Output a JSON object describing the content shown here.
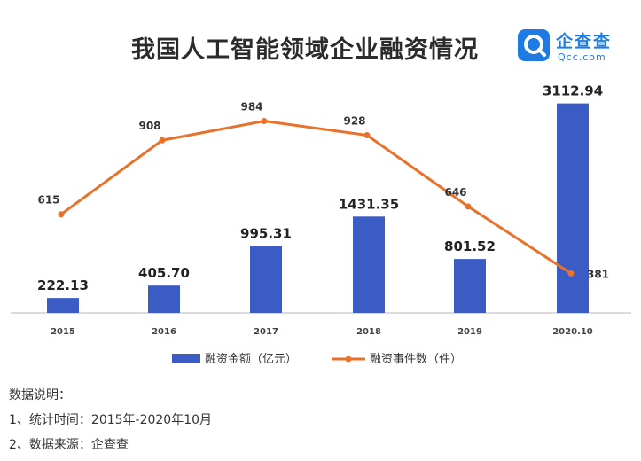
{
  "title": "我国人工智能领域企业融资情况",
  "logo": {
    "name": "企查查",
    "domain": "Qcc.com"
  },
  "colors": {
    "bar": "#3b5cc4",
    "line": "#e8722c",
    "axis": "#cfcfcf"
  },
  "chart_data": {
    "type": "bar",
    "title": "我国人工智能领域企业融资情况",
    "categories": [
      "2015",
      "2016",
      "2017",
      "2018",
      "2019",
      "2020.10"
    ],
    "series": [
      {
        "name": "融资金额（亿元）",
        "type": "bar",
        "values": [
          222.13,
          405.7,
          995.31,
          1431.35,
          801.52,
          3112.94
        ],
        "labels": [
          "222.13",
          "405.70",
          "995.31",
          "1431.35",
          "801.52",
          "3112.94"
        ]
      },
      {
        "name": "融资事件数（件）",
        "type": "line",
        "values": [
          615,
          908,
          984,
          928,
          646,
          381
        ],
        "labels": [
          "615",
          "908",
          "984",
          "928",
          "646",
          "381"
        ]
      }
    ],
    "legend_position": "bottom",
    "grid": false
  },
  "notes": {
    "heading": "数据说明：",
    "lines": [
      "1、统计时间：2015年-2020年10月",
      "2、数据来源：企查查"
    ]
  }
}
